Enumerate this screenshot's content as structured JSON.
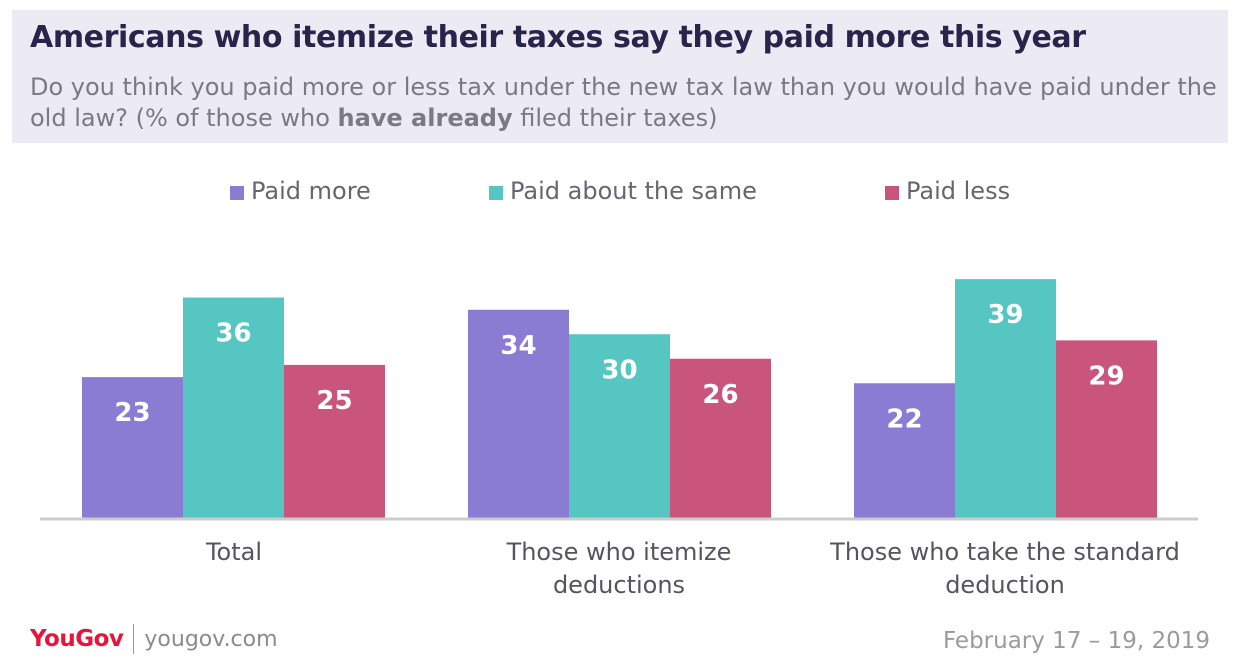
{
  "header": {
    "title": "Americans who itemize their taxes say they paid more this year",
    "subtitle_before": "Do you think you paid more or less tax under the new tax law than you would have paid under the old law? (% of those who ",
    "subtitle_bold": "have already",
    "subtitle_after": " filed their taxes)"
  },
  "footer": {
    "logo": "YouGov",
    "site": "yougov.com",
    "date": "February 17 – 19, 2019"
  },
  "colors": {
    "paid_more": "#8a7bd3",
    "same": "#55c6c2",
    "paid_less": "#c9557c",
    "axis": "#cccccc",
    "header_bg": "#ecebf4",
    "title": "#29244a"
  },
  "chart_data": {
    "type": "bar",
    "title": "",
    "xlabel": "",
    "ylabel": "",
    "ylim": [
      0,
      40
    ],
    "grid": false,
    "legend": "top",
    "categories": [
      "Total",
      "Those who itemize deductions",
      "Those who take the standard deduction"
    ],
    "series": [
      {
        "name": "Paid more",
        "color": "#8a7bd3",
        "values": [
          23,
          34,
          22
        ]
      },
      {
        "name": "Paid about the same",
        "color": "#55c6c2",
        "values": [
          36,
          30,
          39
        ]
      },
      {
        "name": "Paid less",
        "color": "#c9557c",
        "values": [
          25,
          26,
          29
        ]
      }
    ]
  }
}
